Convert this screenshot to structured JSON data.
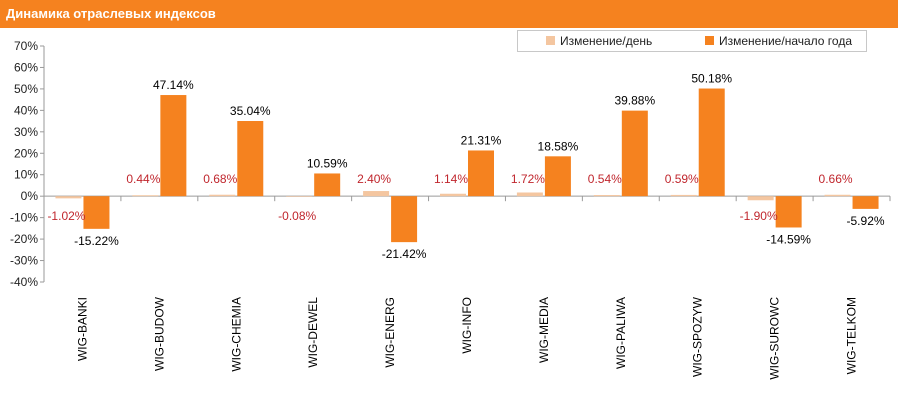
{
  "header": {
    "title": "Динамика отраслевых индексов"
  },
  "colors": {
    "daily": "#f4c6a0",
    "ytd": "#f5821f",
    "title_bg": "#f5821f",
    "daily_label": "#c0262d",
    "ytd_label": "#000000"
  },
  "chart_data": {
    "type": "bar",
    "title": "Динамика отраслевых индексов",
    "xlabel": "",
    "ylabel": "",
    "ylim": [
      -40,
      70
    ],
    "yticks": [
      "70%",
      "60%",
      "50%",
      "40%",
      "30%",
      "20%",
      "10%",
      "0%",
      "-10%",
      "-20%",
      "-30%",
      "-40%"
    ],
    "ytick_values": [
      70,
      60,
      50,
      40,
      30,
      20,
      10,
      0,
      -10,
      -20,
      -30,
      -40
    ],
    "grid": false,
    "legend_position": "top-right",
    "categories": [
      "WIG-BANKI",
      "WIG-BUDOW",
      "WIG-CHEMIA",
      "WIG-DEWEL",
      "WIG-ENERG",
      "WIG-INFO",
      "WIG-MEDIA",
      "WIG-PALIWA",
      "WIG-SPOZYW",
      "WIG-SUROWC",
      "WIG-TELKOM"
    ],
    "series": [
      {
        "name": "Изменение/день",
        "values": [
          -1.02,
          0.44,
          0.68,
          -0.08,
          2.4,
          1.14,
          1.72,
          0.54,
          0.59,
          -1.9,
          0.66
        ],
        "labels": [
          "-1.02%",
          "0.44%",
          "0.68%",
          "-0.08%",
          "2.40%",
          "1.14%",
          "1.72%",
          "0.54%",
          "0.59%",
          "-1.90%",
          "0.66%"
        ]
      },
      {
        "name": "Изменение/начало года",
        "values": [
          -15.22,
          47.14,
          35.04,
          10.59,
          -21.42,
          21.31,
          18.58,
          39.88,
          50.18,
          -14.59,
          -5.92
        ],
        "labels": [
          "-15.22%",
          "47.14%",
          "35.04%",
          "10.59%",
          "-21.42%",
          "21.31%",
          "18.58%",
          "39.88%",
          "50.18%",
          "-14.59%",
          "-5.92%"
        ]
      }
    ]
  }
}
